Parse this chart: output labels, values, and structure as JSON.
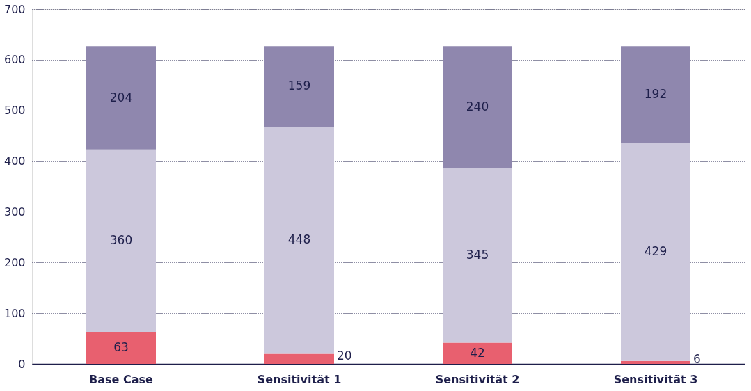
{
  "chart_data": {
    "type": "bar",
    "stacked": true,
    "categories": [
      "Base Case",
      "Sensitivität 1",
      "Sensitivität 2",
      "Sensitivität 3"
    ],
    "series": [
      {
        "color": "#e8606f",
        "values": [
          63,
          20,
          42,
          6
        ]
      },
      {
        "color": "#ccc8dc",
        "values": [
          360,
          448,
          345,
          429
        ]
      },
      {
        "color": "#8f87ae",
        "values": [
          204,
          159,
          240,
          192
        ]
      }
    ],
    "ylim": [
      0,
      700
    ],
    "yticks": [
      0,
      100,
      200,
      300,
      400,
      500,
      600,
      700
    ],
    "grid": "y",
    "data_labels": true,
    "legend": false
  }
}
